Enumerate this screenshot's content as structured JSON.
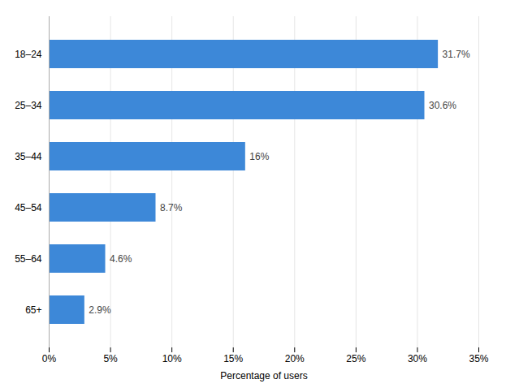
{
  "chart_data": {
    "type": "bar",
    "orientation": "horizontal",
    "categories": [
      "18–24",
      "25–34",
      "35–44",
      "45–54",
      "55–64",
      "65+"
    ],
    "values": [
      31.7,
      30.6,
      16.0,
      8.7,
      4.6,
      2.9
    ],
    "value_labels": [
      "31.7%",
      "30.6%",
      "16%",
      "8.7%",
      "4.6%",
      "2.9%"
    ],
    "data_labels": true,
    "color": "#3d88d8",
    "xlabel": "Percentage of users",
    "xlim": [
      0,
      35
    ],
    "xticks": [
      {
        "value": 0,
        "label": "0%"
      },
      {
        "value": 5,
        "label": "5%"
      },
      {
        "value": 10,
        "label": "10%"
      },
      {
        "value": 15,
        "label": "15%"
      },
      {
        "value": 20,
        "label": "20%"
      },
      {
        "value": 25,
        "label": "25%"
      },
      {
        "value": 30,
        "label": "30%"
      },
      {
        "value": 35,
        "label": "35%"
      }
    ],
    "grid": true
  }
}
